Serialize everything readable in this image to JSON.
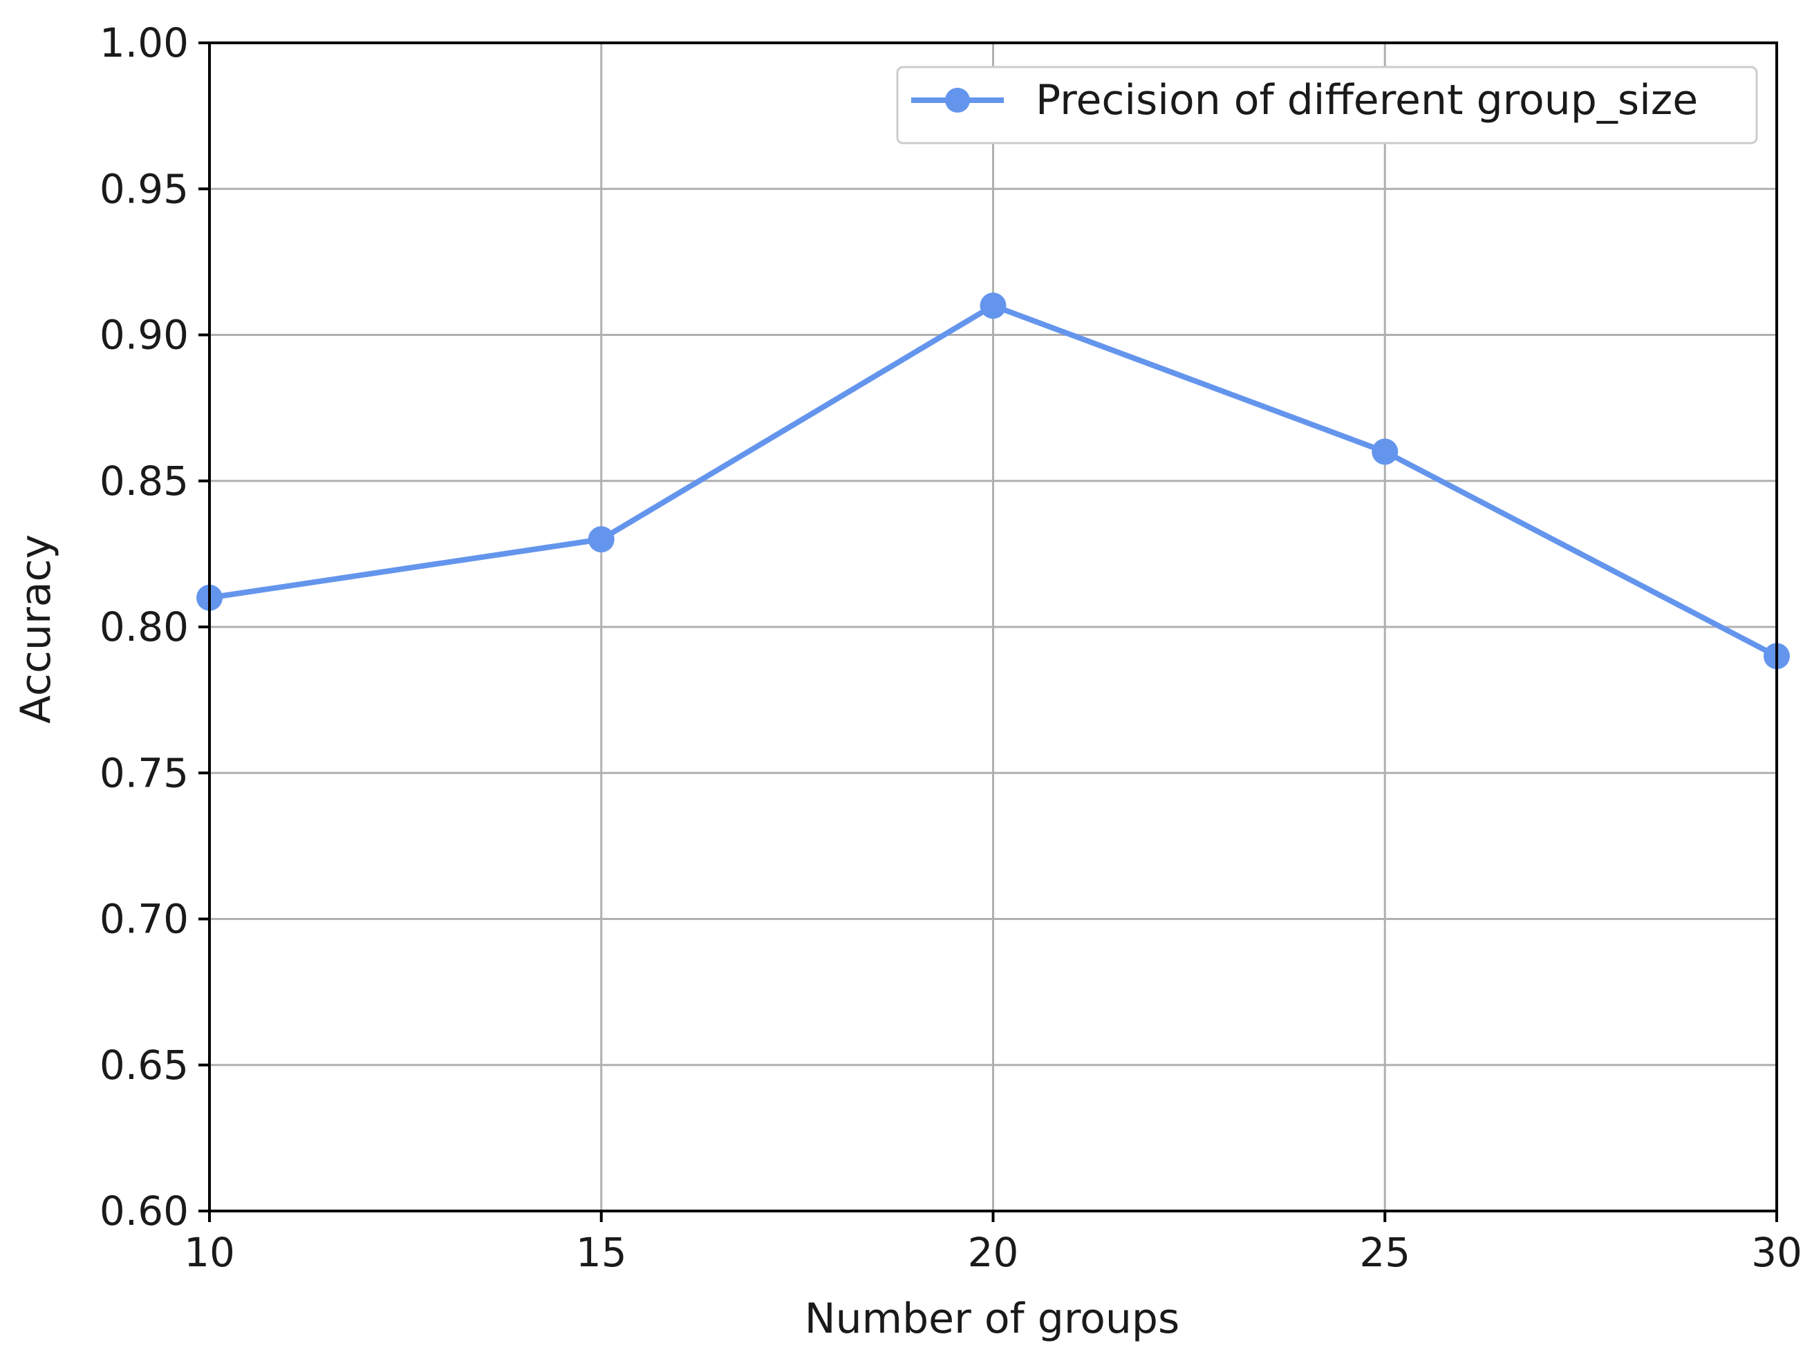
{
  "chart_data": {
    "type": "line",
    "x": [
      10,
      15,
      20,
      25,
      30
    ],
    "series": [
      {
        "name": "Precision of different group_size",
        "values": [
          0.81,
          0.83,
          0.91,
          0.86,
          0.79
        ],
        "color": "#6495ED",
        "marker": "circle"
      }
    ],
    "xlabel": "Number of groups",
    "ylabel": "Accuracy",
    "xlim": [
      10,
      30
    ],
    "ylim": [
      0.6,
      1.0
    ],
    "xticks": [
      "10",
      "15",
      "20",
      "25",
      "30"
    ],
    "yticks": [
      "0.60",
      "0.65",
      "0.70",
      "0.75",
      "0.80",
      "0.85",
      "0.90",
      "0.95",
      "1.00"
    ],
    "grid": true,
    "legend_position": "top-right",
    "colors": {
      "grid": "#b0b0b0",
      "axes": "#000000",
      "line": "#6495ED"
    }
  }
}
